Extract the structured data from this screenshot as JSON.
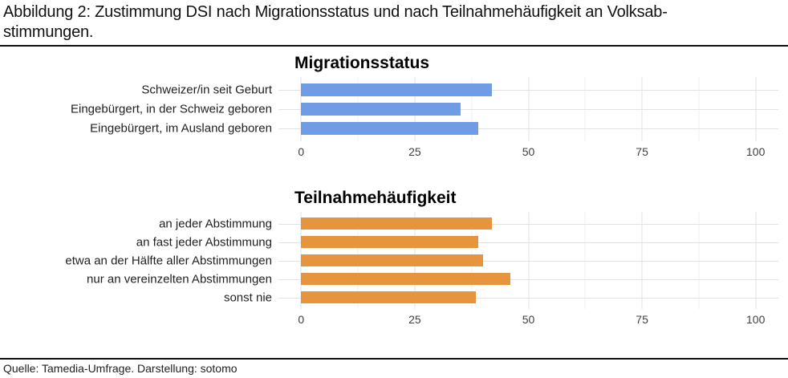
{
  "header": {
    "title_line1": "Abbildung 2: Zustimmung DSI nach Migrationsstatus und nach Teilnahmehäufigkeit an Volksab-",
    "title_line2": "stimmungen."
  },
  "footer": {
    "source": "Quelle: Tamedia-Umfrage. Darstellung: sotomo"
  },
  "colors": {
    "blue_bar": "#6f9ce4",
    "orange_bar": "#e7943f",
    "grid_major": "#e2e2e2",
    "grid_minor": "#f0f0f0",
    "rule": "#111111"
  },
  "chart_data": [
    {
      "type": "bar",
      "orientation": "horizontal",
      "title": "Migrationsstatus",
      "categories": [
        "Schweizer/in seit Geburt",
        "Eingebürgert, in der Schweiz geboren",
        "Eingebürgert, im Ausland geboren"
      ],
      "values": [
        42,
        35,
        39
      ],
      "bar_color": "#6f9ce4",
      "xlim": [
        0,
        100
      ],
      "axis_expand": 5,
      "xticks": [
        0,
        25,
        50,
        75,
        100
      ],
      "xticks_minor": [
        12.5,
        37.5,
        62.5,
        87.5
      ],
      "grid": true,
      "legend": false,
      "xlabel": "",
      "ylabel": ""
    },
    {
      "type": "bar",
      "orientation": "horizontal",
      "title": "Teilnahmehäufigkeit",
      "categories": [
        "an jeder Abstimmung",
        "an fast jeder Abstimmung",
        "etwa an der Hälfte aller Abstimmungen",
        "nur an vereinzelten Abstimmungen",
        "sonst nie"
      ],
      "values": [
        42,
        39,
        40,
        46,
        38.5
      ],
      "bar_color": "#e7943f",
      "xlim": [
        0,
        100
      ],
      "axis_expand": 5,
      "xticks": [
        0,
        25,
        50,
        75,
        100
      ],
      "xticks_minor": [
        12.5,
        37.5,
        62.5,
        87.5
      ],
      "grid": true,
      "legend": false,
      "xlabel": "",
      "ylabel": ""
    }
  ]
}
